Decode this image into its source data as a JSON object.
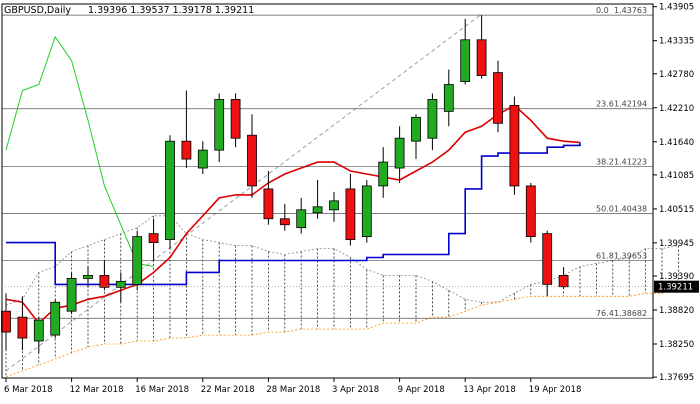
{
  "header": {
    "symbol": "GBPUSD,Daily",
    "ohlc": "1.39396 1.39537 1.39178 1.39211"
  },
  "colors": {
    "bull_candle": "#22aa22",
    "bear_candle": "#ee1111",
    "wick": "#000000",
    "red_ma": "#dd0000",
    "blue_line": "#0000cc",
    "green_line": "#22cc22",
    "cloud_hatch": "#000000",
    "cloud_edge_upper": "#888888",
    "cloud_edge_lower": "#ff8c00",
    "current_price_bg": "#000000",
    "current_price_fg": "#ffffff",
    "axis": "#000000"
  },
  "chart_data": {
    "type": "candlestick",
    "title": "GBPUSD,Daily",
    "ylim": [
      1.3768,
      1.4395
    ],
    "y_ticks": [
      "1.43905",
      "1.43335",
      "1.42780",
      "1.42210",
      "1.41640",
      "1.41085",
      "1.40515",
      "1.39945",
      "1.39390",
      "1.38820",
      "1.38250",
      "1.37695"
    ],
    "x_ticks": [
      "6 Mar 2018",
      "12 Mar 2018",
      "16 Mar 2018",
      "22 Mar 2018",
      "28 Mar 2018",
      "3 Apr 2018",
      "9 Apr 2018",
      "13 Apr 2018",
      "19 Apr 2018"
    ],
    "candles": [
      {
        "o": 1.388,
        "h": 1.391,
        "l": 1.3815,
        "c": 1.3845
      },
      {
        "o": 1.387,
        "h": 1.3905,
        "l": 1.3815,
        "c": 1.3835
      },
      {
        "o": 1.383,
        "h": 1.387,
        "l": 1.381,
        "c": 1.3865
      },
      {
        "o": 1.384,
        "h": 1.39,
        "l": 1.3835,
        "c": 1.3895
      },
      {
        "o": 1.388,
        "h": 1.3945,
        "l": 1.3875,
        "c": 1.3935
      },
      {
        "o": 1.3935,
        "h": 1.3955,
        "l": 1.392,
        "c": 1.394
      },
      {
        "o": 1.394,
        "h": 1.3965,
        "l": 1.3915,
        "c": 1.392
      },
      {
        "o": 1.392,
        "h": 1.3945,
        "l": 1.3895,
        "c": 1.393
      },
      {
        "o": 1.3925,
        "h": 1.4015,
        "l": 1.3915,
        "c": 1.4005
      },
      {
        "o": 1.401,
        "h": 1.4035,
        "l": 1.3965,
        "c": 1.3995
      },
      {
        "o": 1.4,
        "h": 1.4175,
        "l": 1.3985,
        "c": 1.4165
      },
      {
        "o": 1.4165,
        "h": 1.425,
        "l": 1.412,
        "c": 1.4135
      },
      {
        "o": 1.412,
        "h": 1.4165,
        "l": 1.411,
        "c": 1.415
      },
      {
        "o": 1.415,
        "h": 1.4245,
        "l": 1.413,
        "c": 1.4235
      },
      {
        "o": 1.4235,
        "h": 1.4245,
        "l": 1.4155,
        "c": 1.417
      },
      {
        "o": 1.4175,
        "h": 1.421,
        "l": 1.407,
        "c": 1.409
      },
      {
        "o": 1.4085,
        "h": 1.4115,
        "l": 1.4025,
        "c": 1.4035
      },
      {
        "o": 1.4035,
        "h": 1.406,
        "l": 1.4015,
        "c": 1.4025
      },
      {
        "o": 1.402,
        "h": 1.407,
        "l": 1.401,
        "c": 1.405
      },
      {
        "o": 1.4045,
        "h": 1.41,
        "l": 1.4035,
        "c": 1.4055
      },
      {
        "o": 1.405,
        "h": 1.408,
        "l": 1.403,
        "c": 1.4065
      },
      {
        "o": 1.4085,
        "h": 1.411,
        "l": 1.399,
        "c": 1.4
      },
      {
        "o": 1.4005,
        "h": 1.41,
        "l": 1.3995,
        "c": 1.409
      },
      {
        "o": 1.409,
        "h": 1.4155,
        "l": 1.407,
        "c": 1.413
      },
      {
        "o": 1.412,
        "h": 1.419,
        "l": 1.4095,
        "c": 1.417
      },
      {
        "o": 1.4165,
        "h": 1.421,
        "l": 1.4135,
        "c": 1.4205
      },
      {
        "o": 1.417,
        "h": 1.4245,
        "l": 1.415,
        "c": 1.4235
      },
      {
        "o": 1.4215,
        "h": 1.4285,
        "l": 1.419,
        "c": 1.426
      },
      {
        "o": 1.4265,
        "h": 1.437,
        "l": 1.426,
        "c": 1.4335
      },
      {
        "o": 1.4335,
        "h": 1.4376,
        "l": 1.427,
        "c": 1.4275
      },
      {
        "o": 1.428,
        "h": 1.43,
        "l": 1.418,
        "c": 1.4195
      },
      {
        "o": 1.4225,
        "h": 1.424,
        "l": 1.4075,
        "c": 1.409
      },
      {
        "o": 1.409,
        "h": 1.4095,
        "l": 1.3995,
        "c": 1.4005
      },
      {
        "o": 1.401,
        "h": 1.4015,
        "l": 1.3905,
        "c": 1.3925
      },
      {
        "o": 1.394,
        "h": 1.3954,
        "l": 1.3918,
        "c": 1.3921
      }
    ],
    "red_ma": [
      1.39,
      1.3895,
      1.386,
      1.3885,
      1.389,
      1.39,
      1.3905,
      1.3915,
      1.3925,
      1.3945,
      1.397,
      1.401,
      1.404,
      1.407,
      1.4075,
      1.4075,
      1.4095,
      1.411,
      1.412,
      1.413,
      1.413,
      1.4115,
      1.411,
      1.4105,
      1.41,
      1.4115,
      1.413,
      1.415,
      1.418,
      1.419,
      1.421,
      1.4225,
      1.42,
      1.417,
      1.4165,
      1.4163
    ],
    "blue_line": [
      1.3995,
      1.3995,
      1.3995,
      1.3925,
      1.3925,
      1.3925,
      1.3925,
      1.3925,
      1.3925,
      1.3925,
      1.3925,
      1.3945,
      1.3945,
      1.3965,
      1.3965,
      1.3965,
      1.3965,
      1.3965,
      1.3965,
      1.3965,
      1.3965,
      1.3965,
      1.397,
      1.3975,
      1.3975,
      1.3975,
      1.3975,
      1.401,
      1.4085,
      1.414,
      1.4145,
      1.4145,
      1.4145,
      1.4155,
      1.4158,
      1.4163
    ],
    "green_line": [
      1.415,
      1.425,
      1.426,
      1.434,
      1.43,
      1.42,
      1.409,
      1.4025,
      1.396,
      1.3955
    ],
    "cloud_upper": [
      1.389,
      1.39,
      1.3945,
      1.3955,
      1.398,
      1.399,
      1.4,
      1.401,
      1.402,
      1.404,
      1.404,
      1.401,
      1.4,
      1.3995,
      1.399,
      1.399,
      1.398,
      1.3975,
      1.398,
      1.3985,
      1.3985,
      1.397,
      1.395,
      1.394,
      1.394,
      1.394,
      1.393,
      1.3915,
      1.39,
      1.3895,
      1.3895,
      1.391,
      1.3925,
      1.393,
      1.394,
      1.3955,
      1.396,
      1.3965,
      1.397,
      1.3985,
      1.3985,
      1.399
    ],
    "cloud_lower": [
      1.377,
      1.378,
      1.379,
      1.38,
      1.381,
      1.382,
      1.3825,
      1.3825,
      1.383,
      1.383,
      1.3835,
      1.3835,
      1.384,
      1.384,
      1.384,
      1.384,
      1.3845,
      1.3845,
      1.385,
      1.385,
      1.385,
      1.385,
      1.385,
      1.386,
      1.386,
      1.386,
      1.387,
      1.387,
      1.388,
      1.389,
      1.3895,
      1.39,
      1.3905,
      1.3905,
      1.3905,
      1.3905,
      1.3905,
      1.3905,
      1.3905,
      1.391,
      1.391,
      1.392
    ],
    "fib_levels": [
      {
        "ratio": "0.0",
        "price": "1.43763",
        "value": 1.43763
      },
      {
        "ratio": "23.6",
        "price": "1.42194",
        "value": 1.42194
      },
      {
        "ratio": "38.2",
        "price": "1.41223",
        "value": 1.41223
      },
      {
        "ratio": "50.0",
        "price": "1.40438",
        "value": 1.40438
      },
      {
        "ratio": "61.8",
        "price": "1.39653",
        "value": 1.39653
      },
      {
        "ratio": "76.4",
        "price": "1.38682",
        "value": 1.38682
      }
    ],
    "trendline": {
      "from_price": 1.378,
      "to_price": 1.4378
    },
    "current_price": {
      "label": "1.39211",
      "value": 1.39211
    }
  }
}
